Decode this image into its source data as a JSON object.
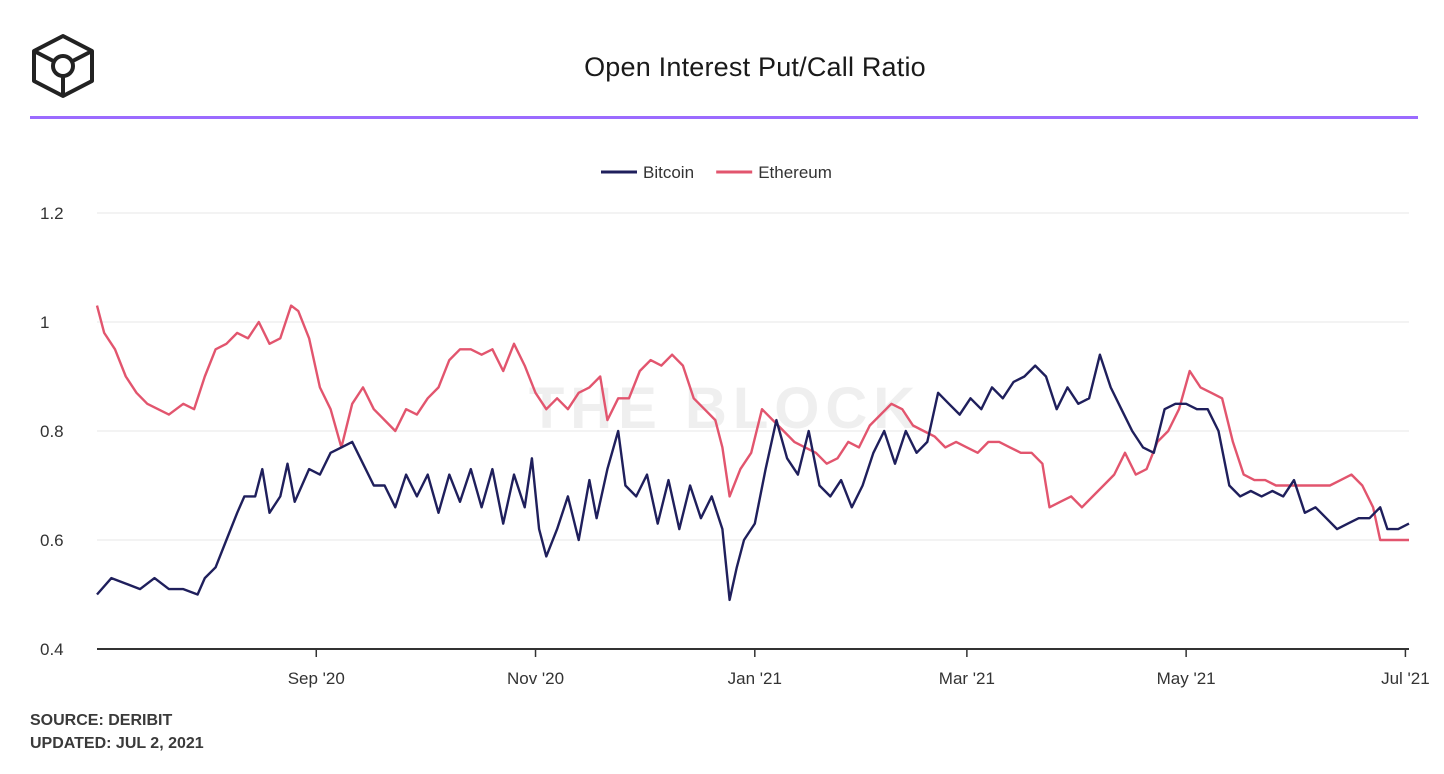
{
  "header": {
    "title": "Open Interest Put/Call Ratio"
  },
  "watermark": "THE BLOCK",
  "footer": {
    "source": "SOURCE: DERIBIT",
    "updated": "UPDATED: JUL 2, 2021"
  },
  "colors": {
    "bitcoin": "#1f1f5c",
    "ethereum": "#e2556e",
    "accent_rule": "#9b6bff"
  },
  "chart_data": {
    "type": "line",
    "title": "Open Interest Put/Call Ratio",
    "xlabel": "",
    "ylabel": "",
    "ylim": [
      0.4,
      1.2
    ],
    "yticks": [
      1.2,
      1.0,
      0.8,
      0.6,
      0.4
    ],
    "ytick_labels": [
      "1.2",
      "1",
      "0.8",
      "0.6",
      "0.4"
    ],
    "xlim": [
      "2020-07-02",
      "2021-07-02"
    ],
    "xticks": [
      {
        "date": "2020-09-01",
        "label": "Sep '20"
      },
      {
        "date": "2020-11-01",
        "label": "Nov '20"
      },
      {
        "date": "2021-01-01",
        "label": "Jan '21"
      },
      {
        "date": "2021-03-01",
        "label": "Mar '21"
      },
      {
        "date": "2021-05-01",
        "label": "May '21"
      },
      {
        "date": "2021-07-01",
        "label": "Jul '21"
      }
    ],
    "grid": true,
    "legend": "top-center",
    "series": [
      {
        "name": "Bitcoin",
        "color": "#1f1f5c",
        "points": [
          [
            "2020-07-02",
            0.5
          ],
          [
            "2020-07-06",
            0.53
          ],
          [
            "2020-07-10",
            0.52
          ],
          [
            "2020-07-14",
            0.51
          ],
          [
            "2020-07-18",
            0.53
          ],
          [
            "2020-07-22",
            0.51
          ],
          [
            "2020-07-26",
            0.51
          ],
          [
            "2020-07-30",
            0.5
          ],
          [
            "2020-08-01",
            0.53
          ],
          [
            "2020-08-04",
            0.55
          ],
          [
            "2020-08-07",
            0.6
          ],
          [
            "2020-08-10",
            0.65
          ],
          [
            "2020-08-12",
            0.68
          ],
          [
            "2020-08-15",
            0.68
          ],
          [
            "2020-08-17",
            0.73
          ],
          [
            "2020-08-19",
            0.65
          ],
          [
            "2020-08-22",
            0.68
          ],
          [
            "2020-08-24",
            0.74
          ],
          [
            "2020-08-26",
            0.67
          ],
          [
            "2020-08-28",
            0.7
          ],
          [
            "2020-08-30",
            0.73
          ],
          [
            "2020-09-02",
            0.72
          ],
          [
            "2020-09-05",
            0.76
          ],
          [
            "2020-09-08",
            0.77
          ],
          [
            "2020-09-11",
            0.78
          ],
          [
            "2020-09-14",
            0.74
          ],
          [
            "2020-09-17",
            0.7
          ],
          [
            "2020-09-20",
            0.7
          ],
          [
            "2020-09-23",
            0.66
          ],
          [
            "2020-09-26",
            0.72
          ],
          [
            "2020-09-29",
            0.68
          ],
          [
            "2020-10-02",
            0.72
          ],
          [
            "2020-10-05",
            0.65
          ],
          [
            "2020-10-08",
            0.72
          ],
          [
            "2020-10-11",
            0.67
          ],
          [
            "2020-10-14",
            0.73
          ],
          [
            "2020-10-17",
            0.66
          ],
          [
            "2020-10-20",
            0.73
          ],
          [
            "2020-10-23",
            0.63
          ],
          [
            "2020-10-26",
            0.72
          ],
          [
            "2020-10-29",
            0.66
          ],
          [
            "2020-10-31",
            0.75
          ],
          [
            "2020-11-02",
            0.62
          ],
          [
            "2020-11-04",
            0.57
          ],
          [
            "2020-11-07",
            0.62
          ],
          [
            "2020-11-10",
            0.68
          ],
          [
            "2020-11-13",
            0.6
          ],
          [
            "2020-11-16",
            0.71
          ],
          [
            "2020-11-18",
            0.64
          ],
          [
            "2020-11-21",
            0.73
          ],
          [
            "2020-11-24",
            0.8
          ],
          [
            "2020-11-26",
            0.7
          ],
          [
            "2020-11-29",
            0.68
          ],
          [
            "2020-12-02",
            0.72
          ],
          [
            "2020-12-05",
            0.63
          ],
          [
            "2020-12-08",
            0.71
          ],
          [
            "2020-12-11",
            0.62
          ],
          [
            "2020-12-14",
            0.7
          ],
          [
            "2020-12-17",
            0.64
          ],
          [
            "2020-12-20",
            0.68
          ],
          [
            "2020-12-23",
            0.62
          ],
          [
            "2020-12-25",
            0.49
          ],
          [
            "2020-12-27",
            0.55
          ],
          [
            "2020-12-29",
            0.6
          ],
          [
            "2021-01-01",
            0.63
          ],
          [
            "2021-01-04",
            0.73
          ],
          [
            "2021-01-07",
            0.82
          ],
          [
            "2021-01-10",
            0.75
          ],
          [
            "2021-01-13",
            0.72
          ],
          [
            "2021-01-16",
            0.8
          ],
          [
            "2021-01-19",
            0.7
          ],
          [
            "2021-01-22",
            0.68
          ],
          [
            "2021-01-25",
            0.71
          ],
          [
            "2021-01-28",
            0.66
          ],
          [
            "2021-01-31",
            0.7
          ],
          [
            "2021-02-03",
            0.76
          ],
          [
            "2021-02-06",
            0.8
          ],
          [
            "2021-02-09",
            0.74
          ],
          [
            "2021-02-12",
            0.8
          ],
          [
            "2021-02-15",
            0.76
          ],
          [
            "2021-02-18",
            0.78
          ],
          [
            "2021-02-21",
            0.87
          ],
          [
            "2021-02-24",
            0.85
          ],
          [
            "2021-02-27",
            0.83
          ],
          [
            "2021-03-02",
            0.86
          ],
          [
            "2021-03-05",
            0.84
          ],
          [
            "2021-03-08",
            0.88
          ],
          [
            "2021-03-11",
            0.86
          ],
          [
            "2021-03-14",
            0.89
          ],
          [
            "2021-03-17",
            0.9
          ],
          [
            "2021-03-20",
            0.92
          ],
          [
            "2021-03-23",
            0.9
          ],
          [
            "2021-03-26",
            0.84
          ],
          [
            "2021-03-29",
            0.88
          ],
          [
            "2021-04-01",
            0.85
          ],
          [
            "2021-04-04",
            0.86
          ],
          [
            "2021-04-07",
            0.94
          ],
          [
            "2021-04-10",
            0.88
          ],
          [
            "2021-04-13",
            0.84
          ],
          [
            "2021-04-16",
            0.8
          ],
          [
            "2021-04-19",
            0.77
          ],
          [
            "2021-04-22",
            0.76
          ],
          [
            "2021-04-25",
            0.84
          ],
          [
            "2021-04-28",
            0.85
          ],
          [
            "2021-05-01",
            0.85
          ],
          [
            "2021-05-04",
            0.84
          ],
          [
            "2021-05-07",
            0.84
          ],
          [
            "2021-05-10",
            0.8
          ],
          [
            "2021-05-13",
            0.7
          ],
          [
            "2021-05-16",
            0.68
          ],
          [
            "2021-05-19",
            0.69
          ],
          [
            "2021-05-22",
            0.68
          ],
          [
            "2021-05-25",
            0.69
          ],
          [
            "2021-05-28",
            0.68
          ],
          [
            "2021-05-31",
            0.71
          ],
          [
            "2021-06-03",
            0.65
          ],
          [
            "2021-06-06",
            0.66
          ],
          [
            "2021-06-09",
            0.64
          ],
          [
            "2021-06-12",
            0.62
          ],
          [
            "2021-06-15",
            0.63
          ],
          [
            "2021-06-18",
            0.64
          ],
          [
            "2021-06-21",
            0.64
          ],
          [
            "2021-06-24",
            0.66
          ],
          [
            "2021-06-26",
            0.62
          ],
          [
            "2021-06-29",
            0.62
          ],
          [
            "2021-07-02",
            0.63
          ]
        ]
      },
      {
        "name": "Ethereum",
        "color": "#e2556e",
        "points": [
          [
            "2020-07-02",
            1.03
          ],
          [
            "2020-07-04",
            0.98
          ],
          [
            "2020-07-07",
            0.95
          ],
          [
            "2020-07-10",
            0.9
          ],
          [
            "2020-07-13",
            0.87
          ],
          [
            "2020-07-16",
            0.85
          ],
          [
            "2020-07-19",
            0.84
          ],
          [
            "2020-07-22",
            0.83
          ],
          [
            "2020-07-26",
            0.85
          ],
          [
            "2020-07-29",
            0.84
          ],
          [
            "2020-08-01",
            0.9
          ],
          [
            "2020-08-04",
            0.95
          ],
          [
            "2020-08-07",
            0.96
          ],
          [
            "2020-08-10",
            0.98
          ],
          [
            "2020-08-13",
            0.97
          ],
          [
            "2020-08-16",
            1.0
          ],
          [
            "2020-08-19",
            0.96
          ],
          [
            "2020-08-22",
            0.97
          ],
          [
            "2020-08-25",
            1.03
          ],
          [
            "2020-08-27",
            1.02
          ],
          [
            "2020-08-30",
            0.97
          ],
          [
            "2020-09-02",
            0.88
          ],
          [
            "2020-09-05",
            0.84
          ],
          [
            "2020-09-08",
            0.77
          ],
          [
            "2020-09-11",
            0.85
          ],
          [
            "2020-09-14",
            0.88
          ],
          [
            "2020-09-17",
            0.84
          ],
          [
            "2020-09-20",
            0.82
          ],
          [
            "2020-09-23",
            0.8
          ],
          [
            "2020-09-26",
            0.84
          ],
          [
            "2020-09-29",
            0.83
          ],
          [
            "2020-10-02",
            0.86
          ],
          [
            "2020-10-05",
            0.88
          ],
          [
            "2020-10-08",
            0.93
          ],
          [
            "2020-10-11",
            0.95
          ],
          [
            "2020-10-14",
            0.95
          ],
          [
            "2020-10-17",
            0.94
          ],
          [
            "2020-10-20",
            0.95
          ],
          [
            "2020-10-23",
            0.91
          ],
          [
            "2020-10-26",
            0.96
          ],
          [
            "2020-10-29",
            0.92
          ],
          [
            "2020-11-01",
            0.87
          ],
          [
            "2020-11-04",
            0.84
          ],
          [
            "2020-11-07",
            0.86
          ],
          [
            "2020-11-10",
            0.84
          ],
          [
            "2020-11-13",
            0.87
          ],
          [
            "2020-11-16",
            0.88
          ],
          [
            "2020-11-19",
            0.9
          ],
          [
            "2020-11-21",
            0.82
          ],
          [
            "2020-11-24",
            0.86
          ],
          [
            "2020-11-27",
            0.86
          ],
          [
            "2020-11-30",
            0.91
          ],
          [
            "2020-12-03",
            0.93
          ],
          [
            "2020-12-06",
            0.92
          ],
          [
            "2020-12-09",
            0.94
          ],
          [
            "2020-12-12",
            0.92
          ],
          [
            "2020-12-15",
            0.86
          ],
          [
            "2020-12-18",
            0.84
          ],
          [
            "2020-12-21",
            0.82
          ],
          [
            "2020-12-23",
            0.77
          ],
          [
            "2020-12-25",
            0.68
          ],
          [
            "2020-12-28",
            0.73
          ],
          [
            "2020-12-31",
            0.76
          ],
          [
            "2021-01-03",
            0.84
          ],
          [
            "2021-01-06",
            0.82
          ],
          [
            "2021-01-09",
            0.8
          ],
          [
            "2021-01-12",
            0.78
          ],
          [
            "2021-01-15",
            0.77
          ],
          [
            "2021-01-18",
            0.76
          ],
          [
            "2021-01-21",
            0.74
          ],
          [
            "2021-01-24",
            0.75
          ],
          [
            "2021-01-27",
            0.78
          ],
          [
            "2021-01-30",
            0.77
          ],
          [
            "2021-02-02",
            0.81
          ],
          [
            "2021-02-05",
            0.83
          ],
          [
            "2021-02-08",
            0.85
          ],
          [
            "2021-02-11",
            0.84
          ],
          [
            "2021-02-14",
            0.81
          ],
          [
            "2021-02-17",
            0.8
          ],
          [
            "2021-02-20",
            0.79
          ],
          [
            "2021-02-23",
            0.77
          ],
          [
            "2021-02-26",
            0.78
          ],
          [
            "2021-03-01",
            0.77
          ],
          [
            "2021-03-04",
            0.76
          ],
          [
            "2021-03-07",
            0.78
          ],
          [
            "2021-03-10",
            0.78
          ],
          [
            "2021-03-13",
            0.77
          ],
          [
            "2021-03-16",
            0.76
          ],
          [
            "2021-03-19",
            0.76
          ],
          [
            "2021-03-22",
            0.74
          ],
          [
            "2021-03-24",
            0.66
          ],
          [
            "2021-03-27",
            0.67
          ],
          [
            "2021-03-30",
            0.68
          ],
          [
            "2021-04-02",
            0.66
          ],
          [
            "2021-04-05",
            0.68
          ],
          [
            "2021-04-08",
            0.7
          ],
          [
            "2021-04-11",
            0.72
          ],
          [
            "2021-04-14",
            0.76
          ],
          [
            "2021-04-17",
            0.72
          ],
          [
            "2021-04-20",
            0.73
          ],
          [
            "2021-04-23",
            0.78
          ],
          [
            "2021-04-26",
            0.8
          ],
          [
            "2021-04-29",
            0.84
          ],
          [
            "2021-05-02",
            0.91
          ],
          [
            "2021-05-05",
            0.88
          ],
          [
            "2021-05-08",
            0.87
          ],
          [
            "2021-05-11",
            0.86
          ],
          [
            "2021-05-14",
            0.78
          ],
          [
            "2021-05-17",
            0.72
          ],
          [
            "2021-05-20",
            0.71
          ],
          [
            "2021-05-23",
            0.71
          ],
          [
            "2021-05-26",
            0.7
          ],
          [
            "2021-05-29",
            0.7
          ],
          [
            "2021-06-01",
            0.7
          ],
          [
            "2021-06-04",
            0.7
          ],
          [
            "2021-06-07",
            0.7
          ],
          [
            "2021-06-10",
            0.7
          ],
          [
            "2021-06-13",
            0.71
          ],
          [
            "2021-06-16",
            0.72
          ],
          [
            "2021-06-19",
            0.7
          ],
          [
            "2021-06-22",
            0.66
          ],
          [
            "2021-06-24",
            0.6
          ],
          [
            "2021-06-27",
            0.6
          ],
          [
            "2021-06-30",
            0.6
          ],
          [
            "2021-07-02",
            0.6
          ]
        ]
      }
    ]
  }
}
